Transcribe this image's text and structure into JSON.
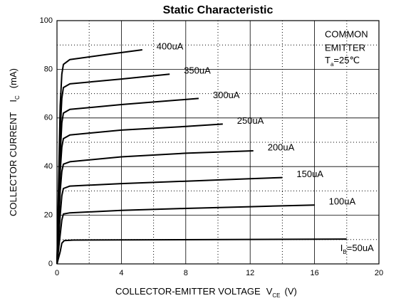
{
  "chart_data": {
    "type": "line",
    "title": "Static Characteristic",
    "xlabel": {
      "text": "COLLECTOR-EMITTER VOLTAGE",
      "symbol": "V",
      "subscript": "CE",
      "unit": "(V)"
    },
    "ylabel": {
      "text": "COLLECTOR CURRENT",
      "symbol": "I",
      "subscript": "C",
      "unit": "(mA)"
    },
    "annotation": {
      "lines": [
        "COMMON",
        "EMITTER"
      ],
      "symbol": "T",
      "subscript": "a",
      "value": "=25℃"
    },
    "curve_label_symbol": {
      "symbol": "I",
      "subscript": "B"
    },
    "xlim": [
      0,
      20
    ],
    "xticks": [
      0,
      4,
      8,
      12,
      16,
      20
    ],
    "minor_xticks": [
      2,
      6,
      10,
      14,
      18
    ],
    "ylim": [
      0,
      100
    ],
    "yticks": [
      0,
      20,
      40,
      60,
      80,
      100
    ],
    "minor_yticks": [
      10,
      30,
      50,
      70,
      90
    ],
    "grid": true,
    "series": [
      {
        "name": "=50uA",
        "color": "#000000",
        "x": [
          0,
          0.2,
          0.3,
          0.45,
          1,
          18
        ],
        "values": [
          0,
          5,
          8.5,
          9.6,
          9.8,
          10.2
        ]
      },
      {
        "name": "100uA",
        "color": "#000000",
        "x": [
          0,
          0.2,
          0.3,
          0.4,
          0.8,
          4,
          8,
          12,
          16
        ],
        "values": [
          0,
          12,
          18,
          20.5,
          21,
          22,
          22.8,
          23.5,
          24.2
        ]
      },
      {
        "name": "150uA",
        "color": "#000000",
        "x": [
          0,
          0.2,
          0.3,
          0.4,
          0.8,
          4,
          8,
          12,
          14
        ],
        "values": [
          0,
          20,
          28,
          31,
          32,
          33,
          34,
          35,
          35.5
        ]
      },
      {
        "name": "200uA",
        "color": "#000000",
        "x": [
          0,
          0.2,
          0.3,
          0.4,
          0.8,
          4,
          8,
          12.2
        ],
        "values": [
          0,
          30,
          38,
          41,
          42,
          44,
          45.5,
          46.5
        ]
      },
      {
        "name": "250uA",
        "color": "#000000",
        "x": [
          0,
          0.2,
          0.3,
          0.4,
          0.8,
          4,
          8,
          10.3
        ],
        "values": [
          0,
          38,
          48,
          51.5,
          53,
          55,
          56.5,
          57.5
        ]
      },
      {
        "name": "300uA",
        "color": "#000000",
        "x": [
          0,
          0.2,
          0.3,
          0.4,
          0.8,
          4,
          8.8
        ],
        "values": [
          0,
          45,
          58,
          62,
          63.5,
          65.5,
          68
        ]
      },
      {
        "name": "350uA",
        "color": "#000000",
        "x": [
          0,
          0.2,
          0.3,
          0.4,
          0.8,
          4,
          7
        ],
        "values": [
          0,
          55,
          68,
          72.5,
          74,
          76,
          78
        ]
      },
      {
        "name": "400uA",
        "color": "#000000",
        "x": [
          0,
          0.2,
          0.3,
          0.4,
          0.8,
          3,
          5.3
        ],
        "values": [
          0,
          65,
          78,
          82,
          84,
          86,
          88
        ]
      }
    ]
  }
}
